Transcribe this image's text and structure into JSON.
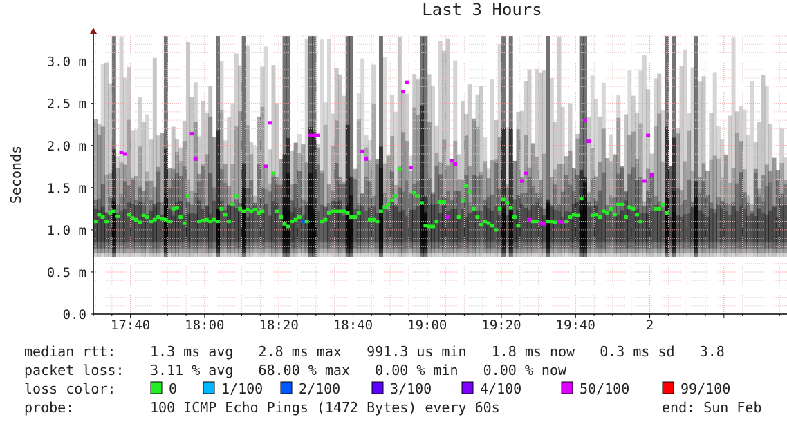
{
  "chart_data": {
    "type": "scatter",
    "title": "Last 3 Hours",
    "ylabel": "Seconds",
    "xlabel": "",
    "ylim": [
      0.0,
      3.3
    ],
    "y_ticks": [
      {
        "value": 0.0,
        "label": "0.0"
      },
      {
        "value": 0.5,
        "label": "0.5 m"
      },
      {
        "value": 1.0,
        "label": "1.0 m"
      },
      {
        "value": 1.5,
        "label": "1.5 m"
      },
      {
        "value": 2.0,
        "label": "2.0 m"
      },
      {
        "value": 2.5,
        "label": "2.5 m"
      },
      {
        "value": 3.0,
        "label": "3.0 m"
      }
    ],
    "x_range_minutes": [
      0,
      187
    ],
    "x_ticks": [
      {
        "value": 10,
        "label": "17:40"
      },
      {
        "value": 30,
        "label": "18:00"
      },
      {
        "value": 50,
        "label": "18:20"
      },
      {
        "value": 70,
        "label": "18:40"
      },
      {
        "value": 90,
        "label": "19:00"
      },
      {
        "value": 110,
        "label": "19:20"
      },
      {
        "value": 130,
        "label": "19:40"
      },
      {
        "value": 150,
        "label": "2"
      }
    ],
    "grid": true,
    "loss_colors": [
      {
        "label": "0",
        "color": "#22ee22"
      },
      {
        "label": "1/100",
        "color": "#00b8ff"
      },
      {
        "label": "2/100",
        "color": "#0059ff"
      },
      {
        "label": "3/100",
        "color": "#5e00ff"
      },
      {
        "label": "4/100",
        "color": "#7e00ff"
      },
      {
        "label": "50/100",
        "color": "#dd00ff"
      },
      {
        "label": "99/100",
        "color": "#ff0000"
      }
    ],
    "spikes_minutes": [
      5,
      19,
      33,
      40,
      51,
      52,
      58,
      59,
      68,
      69,
      77,
      88,
      89,
      110,
      112,
      122,
      131,
      132,
      154,
      156,
      162
    ],
    "median_ms": [
      [
        0,
        1.1
      ],
      [
        1,
        1.18
      ],
      [
        2,
        1.15
      ],
      [
        3,
        1.1
      ],
      [
        4,
        1.2
      ],
      [
        5,
        1.22
      ],
      [
        6,
        1.16
      ],
      [
        7,
        1.92
      ],
      [
        8,
        1.9
      ],
      [
        9,
        1.18
      ],
      [
        10,
        1.14
      ],
      [
        11,
        1.12
      ],
      [
        12,
        1.09
      ],
      [
        13,
        1.17
      ],
      [
        14,
        1.15
      ],
      [
        15,
        1.1
      ],
      [
        16,
        1.12
      ],
      [
        17,
        1.15
      ],
      [
        18,
        1.13
      ],
      [
        19,
        1.12
      ],
      [
        20,
        1.1
      ],
      [
        21,
        1.25
      ],
      [
        22,
        1.26
      ],
      [
        23,
        1.15
      ],
      [
        24,
        1.08
      ],
      [
        25,
        1.4
      ],
      [
        26,
        2.14
      ],
      [
        27,
        1.84
      ],
      [
        28,
        1.1
      ],
      [
        29,
        1.11
      ],
      [
        30,
        1.12
      ],
      [
        31,
        1.1
      ],
      [
        32,
        1.12
      ],
      [
        33,
        1.1
      ],
      [
        34,
        1.25
      ],
      [
        35,
        1.18
      ],
      [
        36,
        1.1
      ],
      [
        37,
        1.3
      ],
      [
        38,
        1.4
      ],
      [
        39,
        1.25
      ],
      [
        40,
        1.22
      ],
      [
        41,
        1.24
      ],
      [
        42,
        1.22
      ],
      [
        43,
        1.24
      ],
      [
        44,
        1.2
      ],
      [
        45,
        1.22
      ],
      [
        46,
        1.75
      ],
      [
        47,
        2.27
      ],
      [
        48,
        1.67
      ],
      [
        49,
        1.22
      ],
      [
        50,
        1.15
      ],
      [
        51,
        1.07
      ],
      [
        52,
        1.04
      ],
      [
        53,
        1.1
      ],
      [
        54,
        1.12
      ],
      [
        55,
        1.15
      ],
      [
        56,
        1.1
      ],
      [
        57,
        1.1
      ],
      [
        58,
        2.12
      ],
      [
        59,
        2.12
      ],
      [
        60,
        2.12
      ],
      [
        61,
        1.1
      ],
      [
        62,
        1.12
      ],
      [
        63,
        1.2
      ],
      [
        64,
        1.22
      ],
      [
        65,
        1.22
      ],
      [
        66,
        1.22
      ],
      [
        67,
        1.22
      ],
      [
        68,
        1.2
      ],
      [
        69,
        1.15
      ],
      [
        70,
        1.15
      ],
      [
        71,
        1.2
      ],
      [
        72,
        1.93
      ],
      [
        73,
        1.84
      ],
      [
        74,
        1.12
      ],
      [
        75,
        1.12
      ],
      [
        76,
        1.1
      ],
      [
        77,
        1.22
      ],
      [
        78,
        1.27
      ],
      [
        79,
        1.3
      ],
      [
        80,
        1.35
      ],
      [
        81,
        1.4
      ],
      [
        82,
        1.72
      ],
      [
        83,
        2.64
      ],
      [
        84,
        2.75
      ],
      [
        85,
        1.74
      ],
      [
        86,
        1.44
      ],
      [
        87,
        1.4
      ],
      [
        88,
        1.32
      ],
      [
        89,
        1.05
      ],
      [
        90,
        1.04
      ],
      [
        91,
        1.04
      ],
      [
        92,
        1.1
      ],
      [
        93,
        1.33
      ],
      [
        94,
        1.33
      ],
      [
        95,
        1.15
      ],
      [
        96,
        1.82
      ],
      [
        97,
        1.78
      ],
      [
        98,
        1.15
      ],
      [
        99,
        1.35
      ],
      [
        100,
        1.52
      ],
      [
        101,
        1.45
      ],
      [
        102,
        1.25
      ],
      [
        103,
        1.15
      ],
      [
        104,
        1.06
      ],
      [
        105,
        1.1
      ],
      [
        106,
        1.08
      ],
      [
        107,
        1.05
      ],
      [
        108,
        1.0
      ],
      [
        109,
        1.25
      ],
      [
        110,
        1.36
      ],
      [
        111,
        1.32
      ],
      [
        112,
        1.26
      ],
      [
        113,
        1.15
      ],
      [
        114,
        1.05
      ],
      [
        115,
        1.58
      ],
      [
        116,
        1.67
      ],
      [
        117,
        1.12
      ],
      [
        118,
        1.1
      ],
      [
        119,
        1.1
      ],
      [
        120,
        1.08
      ],
      [
        121,
        1.07
      ],
      [
        122,
        1.1
      ],
      [
        123,
        1.1
      ],
      [
        124,
        1.09
      ],
      [
        125,
        1.1
      ],
      [
        126,
        1.09
      ],
      [
        127,
        1.1
      ],
      [
        128,
        1.15
      ],
      [
        129,
        1.18
      ],
      [
        130,
        1.17
      ],
      [
        131,
        1.37
      ],
      [
        132,
        2.3
      ],
      [
        133,
        2.05
      ],
      [
        134,
        1.17
      ],
      [
        135,
        1.18
      ],
      [
        136,
        1.15
      ],
      [
        137,
        1.22
      ],
      [
        138,
        1.2
      ],
      [
        139,
        1.25
      ],
      [
        140,
        1.18
      ],
      [
        141,
        1.3
      ],
      [
        142,
        1.3
      ],
      [
        143,
        1.15
      ],
      [
        144,
        1.27
      ],
      [
        145,
        1.25
      ],
      [
        146,
        1.18
      ],
      [
        147,
        1.1
      ],
      [
        148,
        1.58
      ],
      [
        149,
        2.12
      ],
      [
        150,
        1.65
      ],
      [
        151,
        1.25
      ],
      [
        152,
        1.25
      ],
      [
        153,
        1.3
      ],
      [
        154,
        1.2
      ]
    ],
    "loss_points": [
      {
        "minute": 7,
        "loss": "50/100"
      },
      {
        "minute": 8,
        "loss": "50/100"
      },
      {
        "minute": 26,
        "loss": "50/100"
      },
      {
        "minute": 27,
        "loss": "50/100"
      },
      {
        "minute": 46,
        "loss": "50/100"
      },
      {
        "minute": 47,
        "loss": "50/100"
      },
      {
        "minute": 56,
        "loss": "2/100"
      },
      {
        "minute": 58,
        "loss": "50/100"
      },
      {
        "minute": 59,
        "loss": "50/100"
      },
      {
        "minute": 60,
        "loss": "50/100"
      },
      {
        "minute": 72,
        "loss": "50/100"
      },
      {
        "minute": 73,
        "loss": "50/100"
      },
      {
        "minute": 83,
        "loss": "50/100"
      },
      {
        "minute": 84,
        "loss": "50/100"
      },
      {
        "minute": 85,
        "loss": "50/100"
      },
      {
        "minute": 95,
        "loss": "50/100"
      },
      {
        "minute": 96,
        "loss": "50/100"
      },
      {
        "minute": 97,
        "loss": "50/100"
      },
      {
        "minute": 115,
        "loss": "50/100"
      },
      {
        "minute": 116,
        "loss": "50/100"
      },
      {
        "minute": 117,
        "loss": "50/100"
      },
      {
        "minute": 120,
        "loss": "50/100"
      },
      {
        "minute": 121,
        "loss": "50/100"
      },
      {
        "minute": 125,
        "loss": "50/100"
      },
      {
        "minute": 126,
        "loss": "50/100"
      },
      {
        "minute": 132,
        "loss": "50/100"
      },
      {
        "minute": 133,
        "loss": "50/100"
      },
      {
        "minute": 148,
        "loss": "50/100"
      },
      {
        "minute": 149,
        "loss": "50/100"
      },
      {
        "minute": 150,
        "loss": "50/100"
      }
    ]
  },
  "legend": {
    "median_label": "median rtt:",
    "median_values": "1.3 ms avg   2.8 ms max   991.3 us min   1.8 ms now   0.3 ms sd   3.8",
    "loss_label": "packet loss:",
    "loss_values": "3.11 % avg   68.00 % max   0.00 % min   0.00 % now",
    "color_label": "loss color:",
    "probe_label": "probe:",
    "probe_text": "100 ICMP Echo Pings (1472 Bytes) every 60s",
    "end_text": "end: Sun Feb"
  }
}
